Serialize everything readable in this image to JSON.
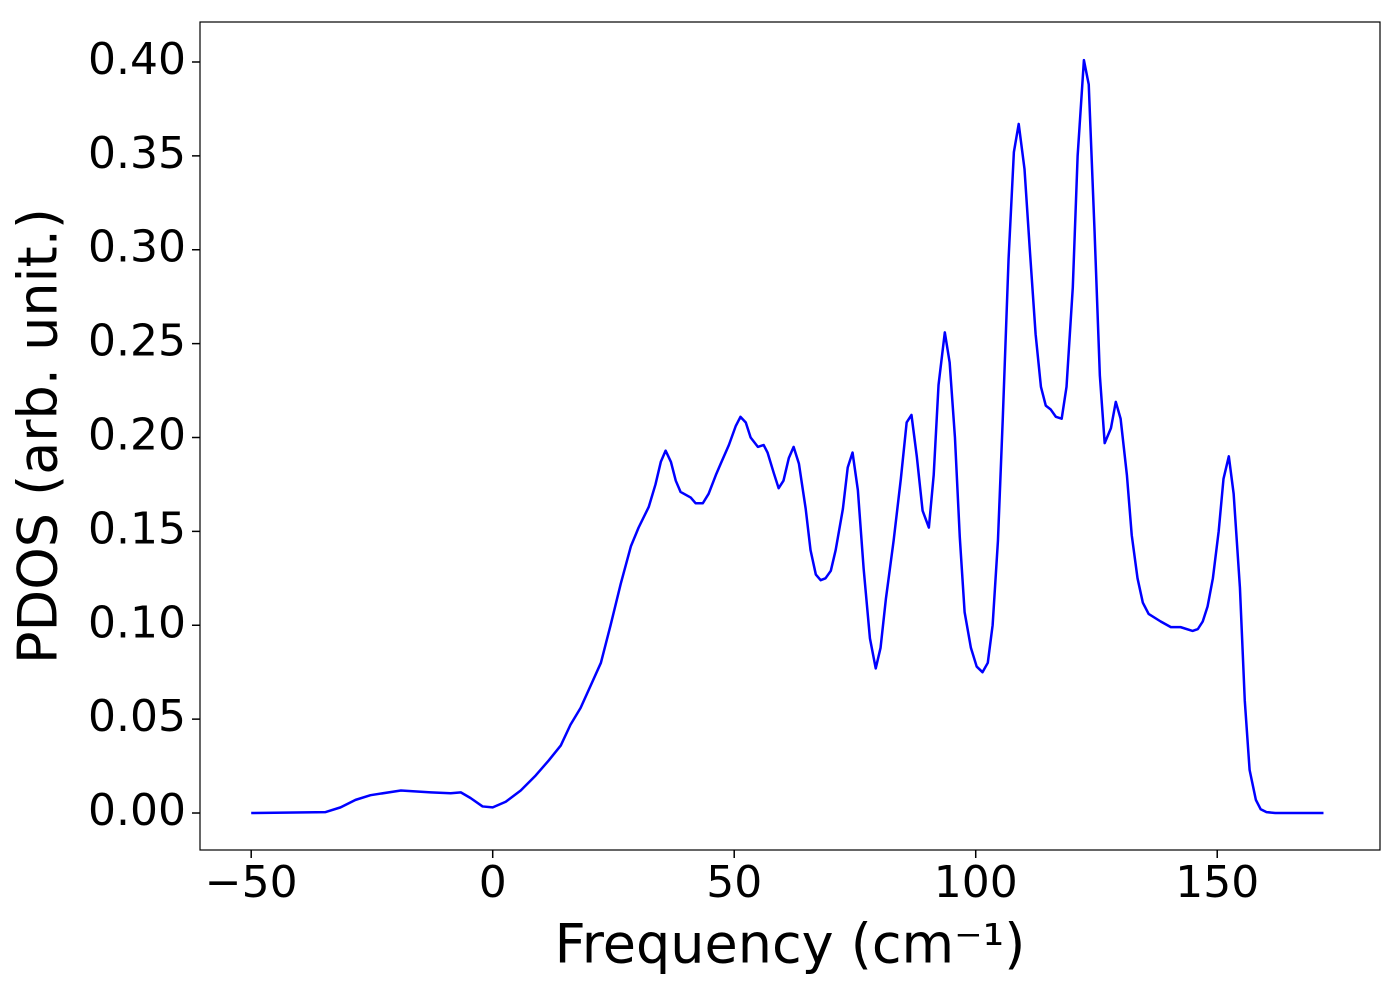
{
  "chart_data": {
    "type": "line",
    "xlabel": "Frequency (cm⁻¹)",
    "ylabel": "PDOS (arb. unit.)",
    "xlim": [
      -60.6,
      183.7
    ],
    "ylim": [
      -0.0197,
      0.4213
    ],
    "xticks": [
      {
        "value": -50,
        "label": "−50"
      },
      0,
      50,
      100,
      150
    ],
    "yticks": [
      {
        "value": 0,
        "label": "0.00"
      },
      {
        "value": 0.05,
        "label": "0.05"
      },
      {
        "value": 0.1,
        "label": "0.10"
      },
      {
        "value": 0.15,
        "label": "0.15"
      },
      {
        "value": 0.2,
        "label": "0.20"
      },
      {
        "value": 0.25,
        "label": "0.25"
      },
      {
        "value": 0.3,
        "label": "0.30"
      },
      {
        "value": 0.35,
        "label": "0.35"
      },
      {
        "value": 0.4,
        "label": "0.40"
      }
    ],
    "series": [
      {
        "color": "#0000ff",
        "x": [
          -50,
          -34.6,
          -31.5,
          -28.4,
          -25.3,
          -19,
          -12.8,
          -8.7,
          -6.6,
          -4.6,
          -2.1,
          0,
          2.7,
          5.8,
          8.9,
          11.6,
          14.1,
          16.1,
          18.2,
          20.3,
          22.4,
          24.4,
          26.5,
          28.6,
          30.2,
          32.3,
          33.7,
          34.8,
          35.8,
          36.9,
          37.9,
          38.9,
          41,
          42,
          43.5,
          44.7,
          46.2,
          47.2,
          48.9,
          50.3,
          51.3,
          52.4,
          53.4,
          54.9,
          56.1,
          56.9,
          58.2,
          59.2,
          60.2,
          61.3,
          62.3,
          63.4,
          64.8,
          65.8,
          66.9,
          67.9,
          68.9,
          70,
          71,
          72.5,
          73.5,
          74.5,
          75.6,
          76.8,
          78.1,
          79.3,
          80.3,
          81.4,
          83,
          84.5,
          85.7,
          86.7,
          87.8,
          89,
          90.3,
          91.3,
          92.3,
          93.6,
          94.6,
          95.7,
          96.7,
          97.7,
          99,
          100.2,
          101.4,
          102.5,
          103.5,
          104.6,
          105.6,
          106.8,
          107.9,
          108.9,
          110.1,
          111.2,
          112.4,
          113.5,
          114.5,
          115.5,
          116.6,
          117.8,
          118.8,
          120.1,
          121.1,
          122.4,
          123.4,
          124.6,
          125.7,
          126.7,
          128,
          129,
          130,
          131.3,
          132.3,
          133.5,
          134.6,
          135.8,
          138.3,
          140.4,
          142.4,
          144.9,
          146,
          147,
          148,
          149.1,
          150.3,
          151.3,
          152.4,
          153.4,
          154.7,
          155.7,
          156.7,
          158,
          159,
          160.2,
          162,
          172
        ],
        "values": [
          0,
          0.0005,
          0.003,
          0.007,
          0.0095,
          0.012,
          0.011,
          0.0105,
          0.011,
          0.008,
          0.0035,
          0.003,
          0.006,
          0.012,
          0.02,
          0.028,
          0.036,
          0.047,
          0.056,
          0.068,
          0.08,
          0.1,
          0.122,
          0.142,
          0.152,
          0.163,
          0.175,
          0.187,
          0.193,
          0.187,
          0.177,
          0.171,
          0.168,
          0.165,
          0.165,
          0.17,
          0.18,
          0.186,
          0.196,
          0.206,
          0.211,
          0.208,
          0.2,
          0.195,
          0.196,
          0.192,
          0.181,
          0.173,
          0.177,
          0.189,
          0.195,
          0.186,
          0.162,
          0.14,
          0.127,
          0.124,
          0.125,
          0.129,
          0.14,
          0.162,
          0.184,
          0.192,
          0.172,
          0.13,
          0.093,
          0.077,
          0.088,
          0.114,
          0.145,
          0.178,
          0.208,
          0.212,
          0.19,
          0.161,
          0.152,
          0.18,
          0.228,
          0.256,
          0.24,
          0.2,
          0.147,
          0.107,
          0.088,
          0.078,
          0.075,
          0.08,
          0.1,
          0.145,
          0.21,
          0.295,
          0.352,
          0.367,
          0.343,
          0.3,
          0.255,
          0.227,
          0.217,
          0.215,
          0.211,
          0.21,
          0.227,
          0.28,
          0.35,
          0.401,
          0.388,
          0.31,
          0.233,
          0.197,
          0.205,
          0.219,
          0.21,
          0.18,
          0.148,
          0.125,
          0.112,
          0.106,
          0.102,
          0.099,
          0.099,
          0.097,
          0.098,
          0.102,
          0.11,
          0.125,
          0.15,
          0.178,
          0.19,
          0.17,
          0.12,
          0.06,
          0.023,
          0.007,
          0.002,
          0.0005,
          0,
          0
        ]
      }
    ]
  }
}
